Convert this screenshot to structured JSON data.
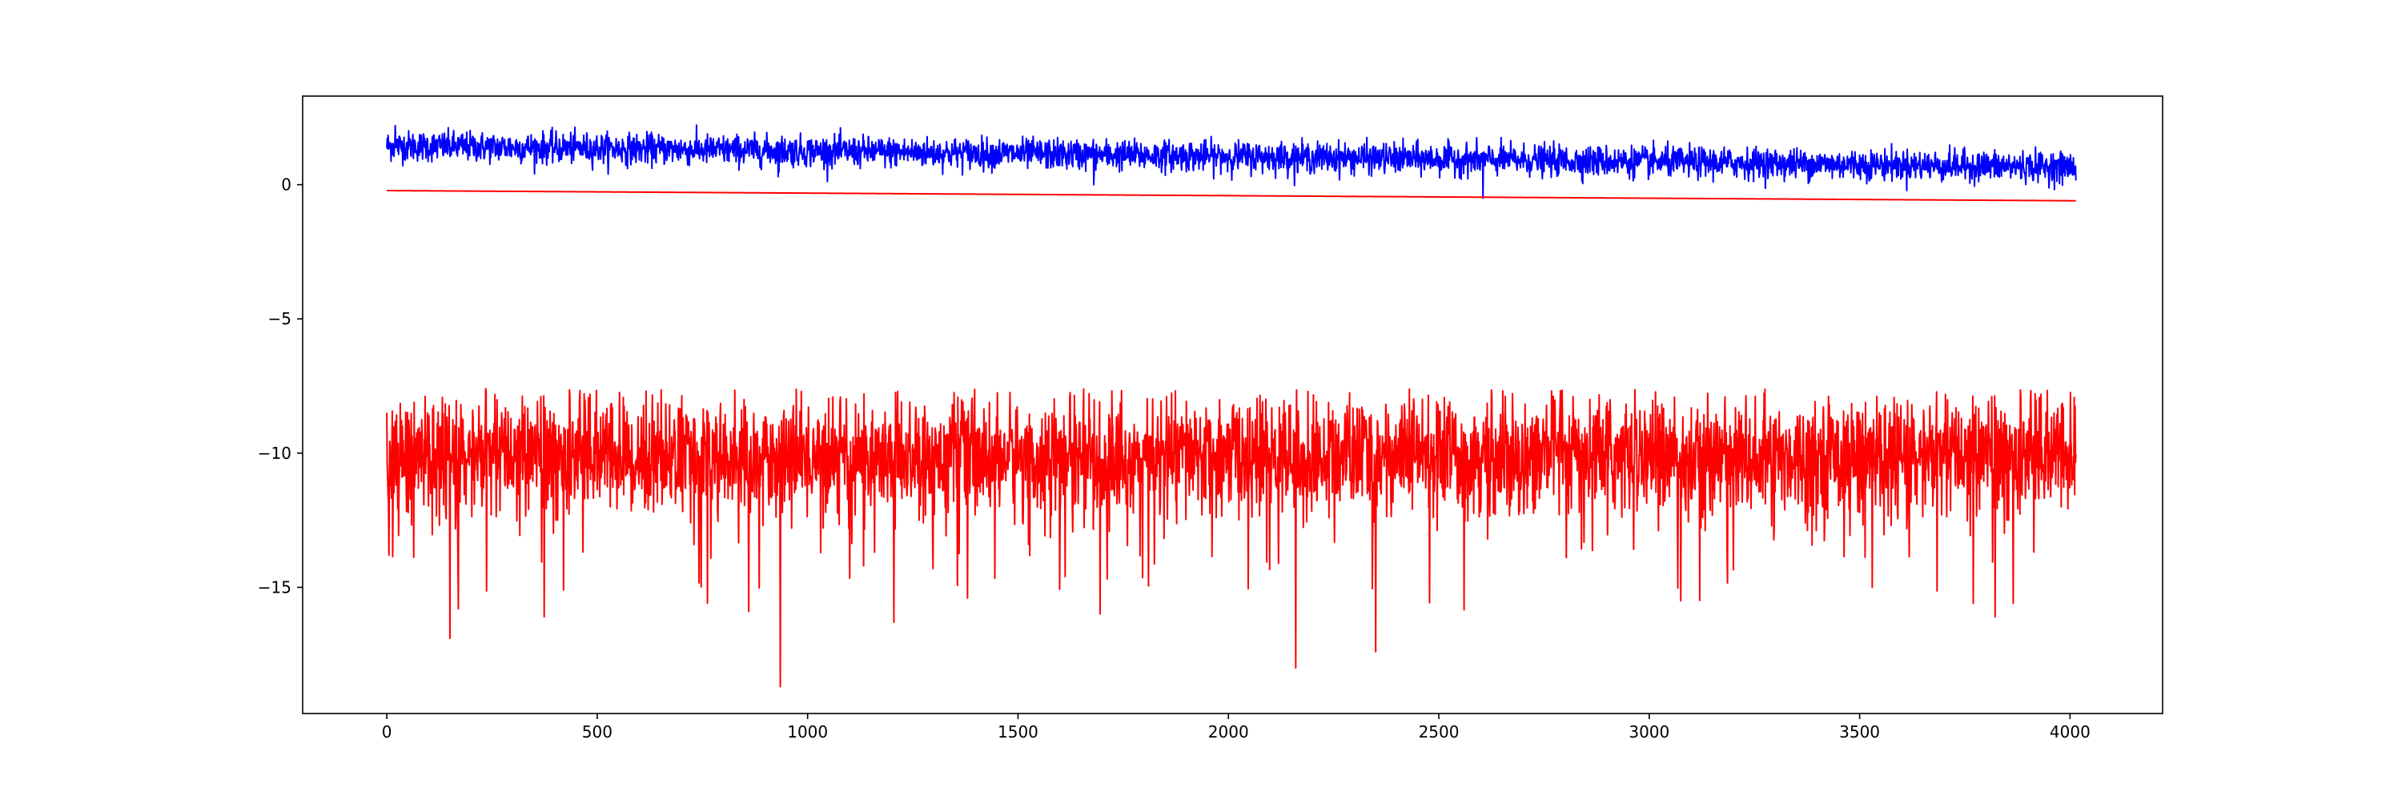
{
  "chart_data": {
    "type": "line",
    "title": "",
    "xlabel": "",
    "ylabel": "",
    "xlim": [
      -200,
      4220
    ],
    "ylim": [
      -19.7,
      3.3
    ],
    "xticks": [
      0,
      500,
      1000,
      1500,
      2000,
      2500,
      3000,
      3500,
      4000
    ],
    "yticks": [
      0,
      -5,
      -10,
      -15
    ],
    "grid": false,
    "legend": "none",
    "n_points": 4015,
    "series": [
      {
        "color": "#0000ff",
        "x_range": [
          0,
          4015
        ],
        "trend": {
          "start": 1.45,
          "end": 0.65
        },
        "noise_std": 0.28,
        "notable_points": [
          {
            "x": 20,
            "y": 2.2
          },
          {
            "x": 930,
            "y": 0.3
          },
          {
            "x": 1680,
            "y": 0.0
          },
          {
            "x": 2605,
            "y": -0.5
          }
        ]
      },
      {
        "color": "#ff0000",
        "x_range": [
          0,
          4015
        ],
        "trend": {
          "start": -0.22,
          "end": -0.6
        },
        "noise_std": 0.0
      },
      {
        "color": "#ff0000",
        "x_range": [
          0,
          4015
        ],
        "trend": {
          "start": -10.1,
          "end": -10.1
        },
        "typical_range": [
          -12.0,
          -8.0
        ],
        "upper_envelope": -7.6,
        "notable_points": [
          {
            "x": 0,
            "y": -8.5
          },
          {
            "x": 5,
            "y": -13.8
          },
          {
            "x": 150,
            "y": -16.9
          },
          {
            "x": 170,
            "y": -15.8
          },
          {
            "x": 235,
            "y": -7.6
          },
          {
            "x": 420,
            "y": -15.1
          },
          {
            "x": 860,
            "y": -15.9
          },
          {
            "x": 935,
            "y": -18.7
          },
          {
            "x": 1205,
            "y": -16.3
          },
          {
            "x": 1380,
            "y": -15.4
          },
          {
            "x": 2160,
            "y": -18.0
          },
          {
            "x": 2350,
            "y": -17.4
          },
          {
            "x": 3075,
            "y": -15.5
          },
          {
            "x": 3530,
            "y": -15.0
          },
          {
            "x": 3770,
            "y": -15.6
          },
          {
            "x": 3865,
            "y": -15.6
          }
        ]
      }
    ]
  },
  "colors": {
    "background": "#ffffff",
    "axes": "#000000"
  }
}
